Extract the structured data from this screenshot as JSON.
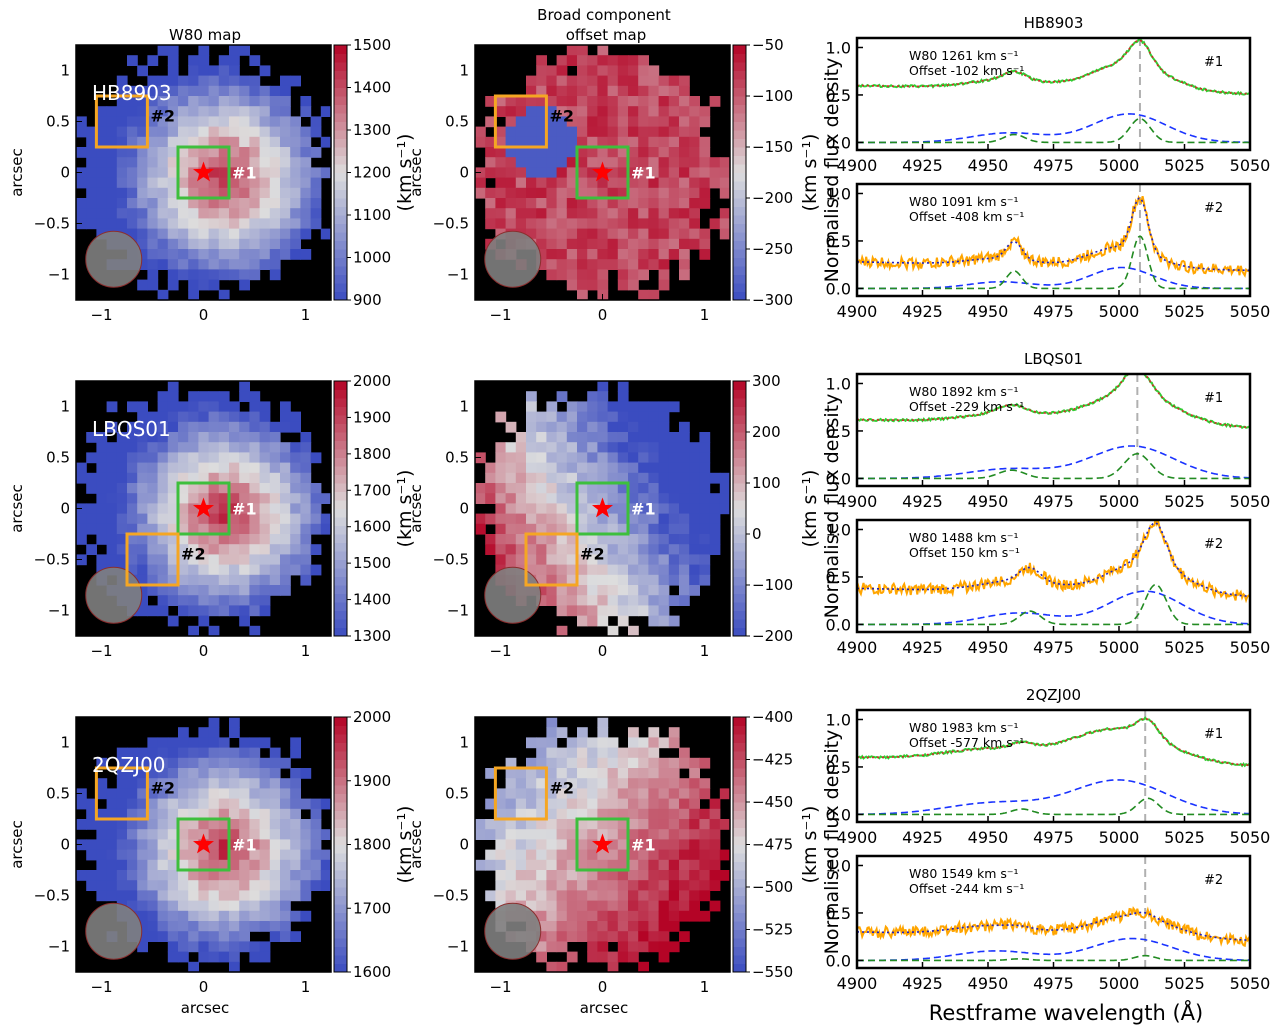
{
  "figure": {
    "col_titles": [
      "W80 map",
      "Broad component",
      "offset map"
    ],
    "xlabel_maps": "arcsec",
    "ylabel_maps": "arcsec",
    "cbar_label": "(km s⁻¹)",
    "spec_ylabel": "Normalised flux density",
    "spec_xlabel": "Restframe wavelength (Å)",
    "colors": {
      "cmap_low": "#3b4cc0",
      "cmap_mid": "#dddddd",
      "cmap_high": "#b40426",
      "region1": "#3dbf3d",
      "region2": "#f5a623",
      "star": "#ff0000",
      "spec_data_1": "#33cc33",
      "spec_data_2": "#ffa500",
      "model_total": "#d62728",
      "model_total_2": "#1f1fbf",
      "comp_broad": "#1a33ff",
      "comp_narrow": "#228b22",
      "vline": "#b0b0b0"
    }
  },
  "chart_data": [
    {
      "type": "heatmap",
      "object": "HB8903",
      "panel": "W80 map",
      "xlim": [
        -1.25,
        1.25
      ],
      "ylim": [
        -1.25,
        1.25
      ],
      "xticks": [
        -1,
        0,
        1
      ],
      "yticks": [
        -1.0,
        -0.5,
        0.0,
        0.5,
        1.0
      ],
      "clim": [
        900,
        1500
      ],
      "cbar_ticks": [
        900,
        1000,
        1100,
        1200,
        1300,
        1400,
        1500
      ],
      "regions": [
        {
          "label": "#1",
          "center": [
            0.0,
            0.0
          ]
        },
        {
          "label": "#2",
          "center": [
            -0.8,
            0.5
          ]
        }
      ]
    },
    {
      "type": "heatmap",
      "object": "HB8903",
      "panel": "Broad component offset map",
      "xlim": [
        -1.25,
        1.25
      ],
      "ylim": [
        -1.25,
        1.25
      ],
      "xticks": [
        -1,
        0,
        1
      ],
      "yticks": [
        -1.0,
        -0.5,
        0.0,
        0.5,
        1.0
      ],
      "clim": [
        -300,
        -50
      ],
      "cbar_ticks": [
        -300,
        -250,
        -200,
        -150,
        -100,
        -50
      ],
      "regions": [
        {
          "label": "#1",
          "center": [
            0.0,
            0.0
          ]
        },
        {
          "label": "#2",
          "center": [
            -0.8,
            0.5
          ]
        }
      ]
    },
    {
      "type": "line",
      "object": "HB8903",
      "region": "#1",
      "title": "HB8903",
      "xlim": [
        4900,
        5050
      ],
      "ylim": [
        -0.08,
        1.1
      ],
      "xticks": [
        4900,
        4925,
        4950,
        4975,
        5000,
        5025,
        5050
      ],
      "yticks": [
        0.0,
        0.5,
        1.0
      ],
      "annotation": [
        "W80 1261 km s⁻¹",
        "Offset -102 km s⁻¹"
      ],
      "vline": 5008,
      "continuum": 0.6,
      "broad": {
        "center": 5004,
        "amp": 0.3,
        "width": 14,
        "blue_center": 4958,
        "blue_amp": 0.1
      },
      "narrow": {
        "center": 5008,
        "amp": 0.25,
        "width": 4
      }
    },
    {
      "type": "line",
      "object": "HB8903",
      "region": "#2",
      "xlim": [
        4900,
        5050
      ],
      "ylim": [
        -0.08,
        1.1
      ],
      "xticks": [
        4900,
        4925,
        4950,
        4975,
        5000,
        5025,
        5050
      ],
      "yticks": [
        0.0,
        0.5,
        1.0
      ],
      "annotation": [
        "W80 1091 km s⁻¹",
        "Offset -408 km s⁻¹"
      ],
      "vline": 5008,
      "continuum": 0.28,
      "broad": {
        "center": 5001,
        "amp": 0.22,
        "width": 12,
        "blue_center": 4955,
        "blue_amp": 0.07
      },
      "narrow": {
        "center": 5008,
        "amp": 0.55,
        "width": 3
      }
    },
    {
      "type": "heatmap",
      "object": "LBQS01",
      "panel": "W80 map",
      "xlim": [
        -1.25,
        1.25
      ],
      "ylim": [
        -1.25,
        1.25
      ],
      "xticks": [
        -1,
        0,
        1
      ],
      "yticks": [
        -1.0,
        -0.5,
        0.0,
        0.5,
        1.0
      ],
      "clim": [
        1300,
        2000
      ],
      "cbar_ticks": [
        1300,
        1400,
        1500,
        1600,
        1700,
        1800,
        1900,
        2000
      ],
      "regions": [
        {
          "label": "#1",
          "center": [
            0.0,
            0.0
          ]
        },
        {
          "label": "#2",
          "center": [
            -0.5,
            -0.5
          ]
        }
      ]
    },
    {
      "type": "heatmap",
      "object": "LBQS01",
      "panel": "Broad component offset map",
      "xlim": [
        -1.25,
        1.25
      ],
      "ylim": [
        -1.25,
        1.25
      ],
      "xticks": [
        -1,
        0,
        1
      ],
      "yticks": [
        -1.0,
        -0.5,
        0.0,
        0.5,
        1.0
      ],
      "clim": [
        -200,
        300
      ],
      "cbar_ticks": [
        -200,
        -100,
        0,
        100,
        200,
        300
      ],
      "regions": [
        {
          "label": "#1",
          "center": [
            0.0,
            0.0
          ]
        },
        {
          "label": "#2",
          "center": [
            -0.5,
            -0.5
          ]
        }
      ]
    },
    {
      "type": "line",
      "object": "LBQS01",
      "region": "#1",
      "title": "LBQS01",
      "xlim": [
        4900,
        5050
      ],
      "ylim": [
        -0.08,
        1.1
      ],
      "xticks": [
        4900,
        4925,
        4950,
        4975,
        5000,
        5025,
        5050
      ],
      "yticks": [
        0.0,
        0.5,
        1.0
      ],
      "annotation": [
        "W80 1892 km s⁻¹",
        "Offset -229 km s⁻¹"
      ],
      "vline": 5007,
      "continuum": 0.62,
      "broad": {
        "center": 5005,
        "amp": 0.34,
        "width": 16,
        "blue_center": 4958,
        "blue_amp": 0.1
      },
      "narrow": {
        "center": 5007,
        "amp": 0.26,
        "width": 5
      }
    },
    {
      "type": "line",
      "object": "LBQS01",
      "region": "#2",
      "xlim": [
        4900,
        5050
      ],
      "ylim": [
        -0.08,
        1.1
      ],
      "xticks": [
        4900,
        4925,
        4950,
        4975,
        5000,
        5025,
        5050
      ],
      "yticks": [
        0.0,
        0.5,
        1.0
      ],
      "annotation": [
        "W80 1488 km s⁻¹",
        "Offset 150 km s⁻¹"
      ],
      "vline": 5007,
      "continuum": 0.38,
      "broad": {
        "center": 5010,
        "amp": 0.35,
        "width": 14,
        "blue_center": 4962,
        "blue_amp": 0.12
      },
      "narrow": {
        "center": 5014,
        "amp": 0.42,
        "width": 4
      }
    },
    {
      "type": "heatmap",
      "object": "2QZJ00",
      "panel": "W80 map",
      "xlim": [
        -1.25,
        1.25
      ],
      "ylim": [
        -1.25,
        1.25
      ],
      "xticks": [
        -1,
        0,
        1
      ],
      "yticks": [
        -1.0,
        -0.5,
        0.0,
        0.5,
        1.0
      ],
      "clim": [
        1600,
        2000
      ],
      "cbar_ticks": [
        1600,
        1700,
        1800,
        1900,
        2000
      ],
      "regions": [
        {
          "label": "#1",
          "center": [
            0.0,
            0.0
          ]
        },
        {
          "label": "#2",
          "center": [
            -0.8,
            0.5
          ]
        }
      ]
    },
    {
      "type": "heatmap",
      "object": "2QZJ00",
      "panel": "Broad component offset map",
      "xlim": [
        -1.25,
        1.25
      ],
      "ylim": [
        -1.25,
        1.25
      ],
      "xticks": [
        -1,
        0,
        1
      ],
      "yticks": [
        -1.0,
        -0.5,
        0.0,
        0.5,
        1.0
      ],
      "clim": [
        -550,
        -400
      ],
      "cbar_ticks": [
        -550,
        -525,
        -500,
        -475,
        -450,
        -425,
        -400
      ],
      "regions": [
        {
          "label": "#1",
          "center": [
            0.0,
            0.0
          ]
        },
        {
          "label": "#2",
          "center": [
            -0.8,
            0.5
          ]
        }
      ]
    },
    {
      "type": "line",
      "object": "2QZJ00",
      "region": "#1",
      "title": "2QZJ00",
      "xlim": [
        4900,
        5050
      ],
      "ylim": [
        -0.08,
        1.1
      ],
      "xticks": [
        4900,
        4925,
        4950,
        4975,
        5000,
        5025,
        5050
      ],
      "yticks": [
        0.0,
        0.5,
        1.0
      ],
      "annotation": [
        "W80 1983 km s⁻¹",
        "Offset -577 km s⁻¹"
      ],
      "vline": 5010,
      "continuum": 0.6,
      "broad": {
        "center": 5000,
        "amp": 0.36,
        "width": 18,
        "blue_center": 4952,
        "blue_amp": 0.12
      },
      "narrow": {
        "center": 5011,
        "amp": 0.17,
        "width": 4
      }
    },
    {
      "type": "line",
      "object": "2QZJ00",
      "region": "#2",
      "xlim": [
        4900,
        5050
      ],
      "ylim": [
        -0.08,
        1.1
      ],
      "xticks": [
        4900,
        4925,
        4950,
        4975,
        5000,
        5025,
        5050
      ],
      "yticks": [
        0.0,
        0.5,
        1.0
      ],
      "annotation": [
        "W80 1549 km s⁻¹",
        "Offset -244 km s⁻¹"
      ],
      "vline": 5010,
      "continuum": 0.3,
      "broad": {
        "center": 5005,
        "amp": 0.23,
        "width": 15,
        "blue_center": 4953,
        "blue_amp": 0.1
      },
      "narrow": {
        "center": 5010,
        "amp": 0.05,
        "width": 4
      }
    }
  ]
}
